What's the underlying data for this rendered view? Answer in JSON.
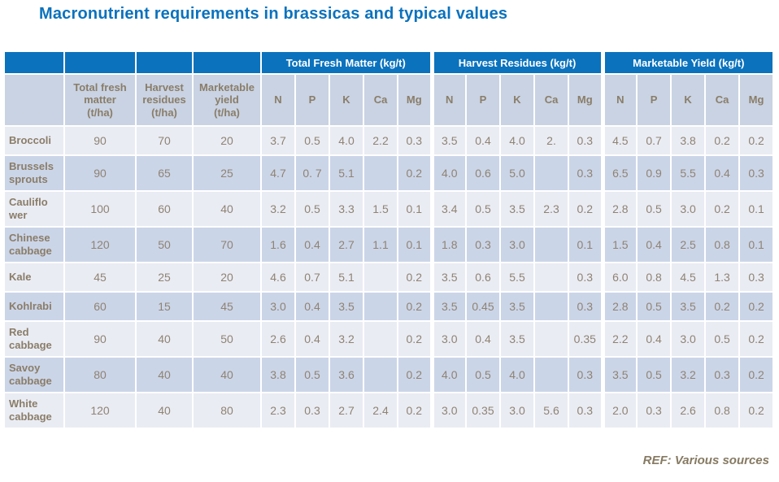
{
  "title": "Macronutrient requirements in brassicas and typical values",
  "footer": {
    "reference": "REF: Various sources"
  },
  "colors": {
    "header_blue": "#0B72BD",
    "subheader_bg": "#C9D3E3",
    "band_light": "#EAECF4",
    "band_dark": "#CBD5E8",
    "text_brown": "#8A7D68"
  },
  "table": {
    "groups": [
      "Total Fresh Matter (kg/t)",
      "Harvest Residues (kg/t)",
      "Marketable Yield (kg/t)"
    ],
    "subheaders": [
      "Total fresh\nmatter\n(t/ha)",
      "Harvest\nresidues\n(t/ha)",
      "Marketable\nyield\n(t/ha)"
    ],
    "nutrients": [
      "N",
      "P",
      "K",
      "Ca",
      "Mg"
    ],
    "rows": [
      {
        "label": "Broccoli",
        "area": [
          "90",
          "70",
          "20"
        ],
        "fresh_matter": [
          "3.7",
          "0.5",
          "4.0",
          "2.2",
          "0.3"
        ],
        "residues": [
          "3.5",
          "0.4",
          "4.0",
          "2.",
          "0.3"
        ],
        "yield": [
          "4.5",
          "0.7",
          "3.8",
          "0.2",
          "0.2"
        ]
      },
      {
        "label": "Brussels\nsprouts",
        "area": [
          "90",
          "65",
          "25"
        ],
        "fresh_matter": [
          "4.7",
          "0. 7",
          "5.1",
          "",
          "0.2"
        ],
        "residues": [
          "4.0",
          "0.6",
          "5.0",
          "",
          "0.3"
        ],
        "yield": [
          "6.5",
          "0.9",
          "5.5",
          "0.4",
          "0.3"
        ]
      },
      {
        "label": "Cauliflo\nwer",
        "area": [
          "100",
          "60",
          "40"
        ],
        "fresh_matter": [
          "3.2",
          "0.5",
          "3.3",
          "1.5",
          "0.1"
        ],
        "residues": [
          "3.4",
          "0.5",
          "3.5",
          "2.3",
          "0.2"
        ],
        "yield": [
          "2.8",
          "0.5",
          "3.0",
          "0.2",
          "0.1"
        ]
      },
      {
        "label": "Chinese\ncabbage",
        "area": [
          "120",
          "50",
          "70"
        ],
        "fresh_matter": [
          "1.6",
          "0.4",
          "2.7",
          "1.1",
          "0.1"
        ],
        "residues": [
          "1.8",
          "0.3",
          "3.0",
          "",
          "0.1"
        ],
        "yield": [
          "1.5",
          "0.4",
          "2.5",
          "0.8",
          "0.1"
        ]
      },
      {
        "label": "Kale",
        "area": [
          "45",
          "25",
          "20"
        ],
        "fresh_matter": [
          "4.6",
          "0.7",
          "5.1",
          "",
          "0.2"
        ],
        "residues": [
          "3.5",
          "0.6",
          "5.5",
          "",
          "0.3"
        ],
        "yield": [
          "6.0",
          "0.8",
          "4.5",
          "1.3",
          "0.3"
        ]
      },
      {
        "label": "Kohlrabi",
        "area": [
          "60",
          "15",
          "45"
        ],
        "fresh_matter": [
          "3.0",
          "0.4",
          "3.5",
          "",
          "0.2"
        ],
        "residues": [
          "3.5",
          "0.45",
          "3.5",
          "",
          "0.3"
        ],
        "yield": [
          "2.8",
          "0.5",
          "3.5",
          "0.2",
          "0.2"
        ]
      },
      {
        "label": "Red\ncabbage",
        "area": [
          "90",
          "40",
          "50"
        ],
        "fresh_matter": [
          "2.6",
          "0.4",
          "3.2",
          "",
          "0.2"
        ],
        "residues": [
          "3.0",
          "0.4",
          "3.5",
          "",
          "0.35"
        ],
        "yield": [
          "2.2",
          "0.4",
          "3.0",
          "0.5",
          "0.2"
        ]
      },
      {
        "label": "Savoy\ncabbage",
        "area": [
          "80",
          "40",
          "40"
        ],
        "fresh_matter": [
          "3.8",
          "0.5",
          "3.6",
          "",
          "0.2"
        ],
        "residues": [
          "4.0",
          "0.5",
          "4.0",
          "",
          "0.3"
        ],
        "yield": [
          "3.5",
          "0.5",
          "3.2",
          "0.3",
          "0.2"
        ]
      },
      {
        "label": "White\ncabbage",
        "area": [
          "120",
          "40",
          "80"
        ],
        "fresh_matter": [
          "2.3",
          "0.3",
          "2.7",
          "2.4",
          "0.2"
        ],
        "residues": [
          "3.0",
          "0.35",
          "3.0",
          "5.6",
          "0.3"
        ],
        "yield": [
          "2.0",
          "0.3",
          "2.6",
          "0.8",
          "0.2"
        ]
      }
    ]
  }
}
